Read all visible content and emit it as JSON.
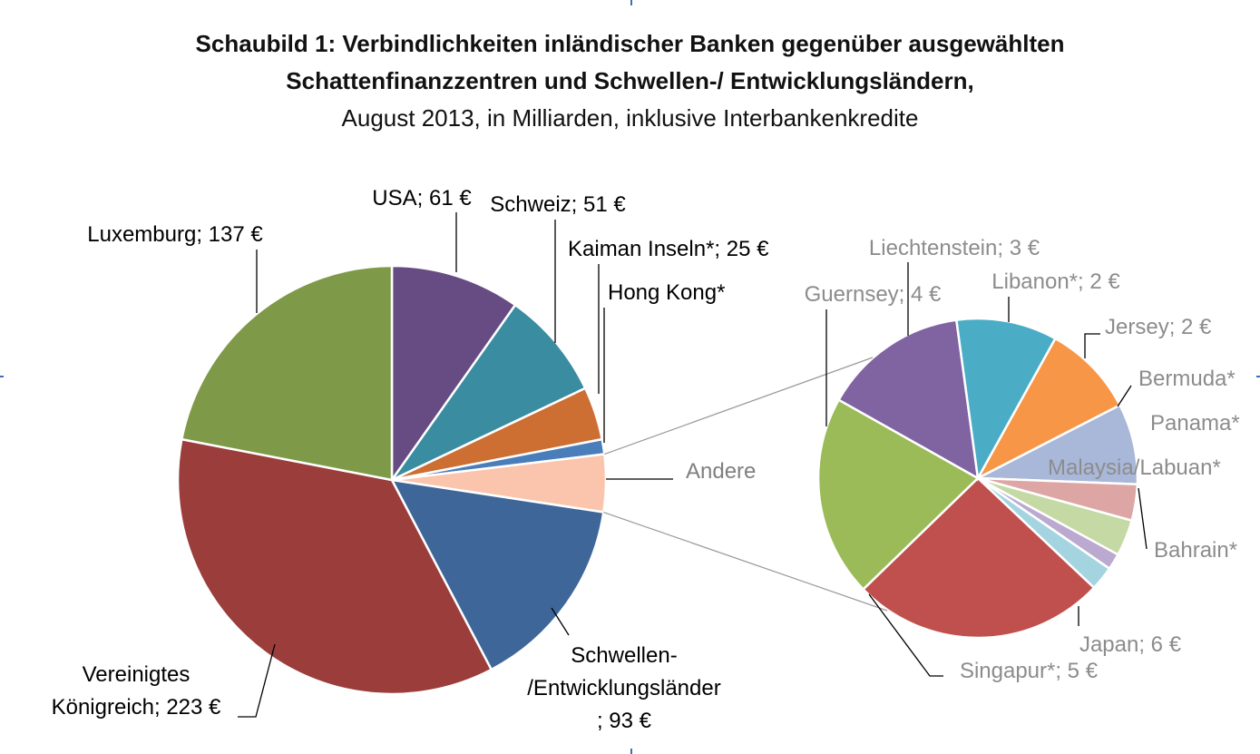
{
  "chart_data": {
    "type": "pie",
    "title_line1": "Schaubild 1: Verbindlichkeiten inländischer Banken gegenüber ausgewählten",
    "title_line2": "Schattenfinanzzentren und Schwellen-/ Entwicklungsländern,",
    "subtitle": "August 2013, in Milliarden, inklusive Interbankenkredite",
    "main_pie": {
      "slices": [
        {
          "key": "usa",
          "label": "USA; 61 €",
          "value": 61,
          "color": "#674C84"
        },
        {
          "key": "schweiz",
          "label": "Schweiz; 51 €",
          "value": 51,
          "color": "#3A8CA1"
        },
        {
          "key": "kaiman",
          "label": "Kaiman Inseln*; 25 €",
          "value": 25,
          "color": "#CD6E32"
        },
        {
          "key": "hongkong",
          "label": "Hong Kong*",
          "value": 7,
          "color": "#4A7EBB"
        },
        {
          "key": "andere",
          "label": "Andere",
          "value": 27,
          "color": "#FAC5AC"
        },
        {
          "key": "schwellen",
          "label_lines": [
            "Schwellen-",
            "/Entwicklungsländer",
            "; 93 €"
          ],
          "value": 93,
          "color": "#3E6699"
        },
        {
          "key": "uk",
          "label_lines": [
            "Vereinigtes",
            "Königreich; 223 €"
          ],
          "value": 223,
          "color": "#9B3D3B"
        },
        {
          "key": "lux",
          "label": "Luxemburg; 137 €",
          "value": 137,
          "color": "#7E9A48"
        }
      ]
    },
    "secondary_pie": {
      "source": "Andere",
      "slices": [
        {
          "key": "libanon",
          "label": "Libanon*; 2 €",
          "value": 2.3,
          "color": "#F79646"
        },
        {
          "key": "jersey",
          "label": "Jersey; 2 €",
          "value": 2.0,
          "color": "#A9B8D8"
        },
        {
          "key": "bermuda",
          "label": "Bermuda*",
          "value": 0.9,
          "color": "#DDA6A5"
        },
        {
          "key": "panama",
          "label": "Panama*",
          "value": 0.9,
          "color": "#C4D9A4"
        },
        {
          "key": "malaysia",
          "label": "Malaysia/Labuan*",
          "value": 0.4,
          "color": "#BBA9D0"
        },
        {
          "key": "bahrain",
          "label": "Bahrain*",
          "value": 0.6,
          "color": "#A5D4E1"
        },
        {
          "key": "japan",
          "label": "Japan; 6 €",
          "value": 6.3,
          "color": "#C0504D"
        },
        {
          "key": "singapur",
          "label": "Singapur*; 5 €",
          "value": 5.0,
          "color": "#9BBB59"
        },
        {
          "key": "guernsey",
          "label": "Guernsey; 4 €",
          "value": 3.6,
          "color": "#8064A2"
        },
        {
          "key": "liechtenstein",
          "label": "Liechtenstein; 3 €",
          "value": 2.5,
          "color": "#4BACC6"
        }
      ]
    }
  }
}
